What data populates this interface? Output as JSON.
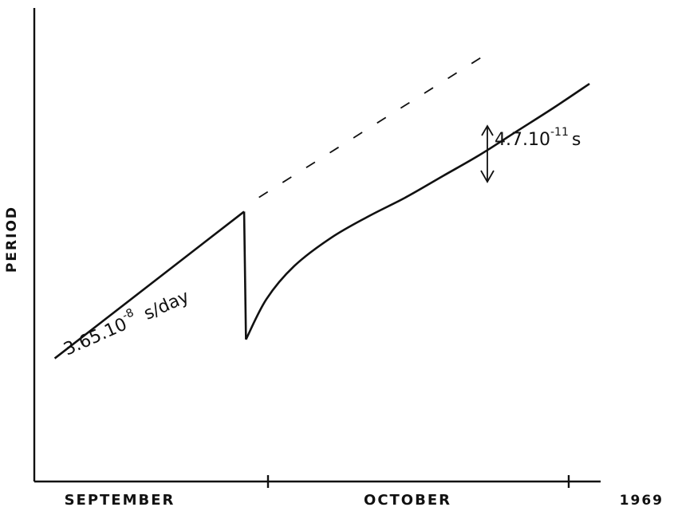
{
  "chart_data": {
    "type": "line",
    "ylabel": "PERIOD",
    "year_label": "1969",
    "x_tick_labels": [
      "SEPTEMBER",
      "OCTOBER"
    ],
    "xlim": [
      0,
      61
    ],
    "ylim": [
      0,
      10
    ],
    "y_ticks_shown": false,
    "grid": false,
    "series": [
      {
        "segment": "before-glitch",
        "x": [
          2.2,
          22.6
        ],
        "y": [
          2.6,
          5.7
        ]
      },
      {
        "segment": "glitch-drop",
        "x": [
          22.6,
          22.8
        ],
        "y": [
          5.7,
          3.0
        ]
      },
      {
        "segment": "recovery",
        "x": [
          22.8,
          25.0,
          28.0,
          32.0,
          36.0,
          40.0,
          44.0,
          48.0,
          52.0,
          56.0,
          59.8
        ],
        "y": [
          3.0,
          3.85,
          4.55,
          5.15,
          5.6,
          6.0,
          6.45,
          6.9,
          7.4,
          7.9,
          8.4
        ]
      },
      {
        "segment": "extrapolation-dashed",
        "x": [
          24.2,
          48.5
        ],
        "y": [
          6.0,
          9.0
        ]
      }
    ],
    "annotations": {
      "slope": {
        "mantissa": "3.65.10",
        "exponent": "-8",
        "unit": "s/day"
      },
      "offset": {
        "mantissa": "4.7.10",
        "exponent": "-11",
        "unit": "s"
      }
    }
  }
}
